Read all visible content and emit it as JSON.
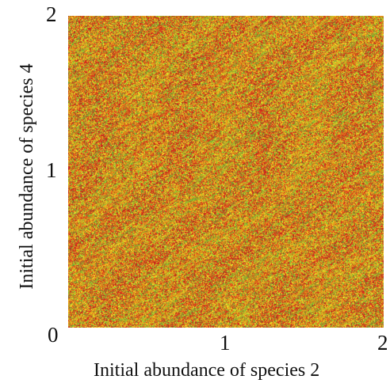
{
  "chart_data": {
    "type": "heatmap",
    "title": "",
    "xlabel": "Initial abundance of species 2",
    "ylabel": "Initial abundance of species 4",
    "xlim": [
      0,
      2
    ],
    "ylim": [
      0,
      2
    ],
    "x_ticks": [
      {
        "value": 1,
        "label": "1"
      },
      {
        "value": 2,
        "label": "2"
      }
    ],
    "y_ticks": [
      {
        "value": 1,
        "label": "1"
      },
      {
        "value": 2,
        "label": "2"
      }
    ],
    "origin_label": "0",
    "grid": false,
    "legend": "none",
    "colors": [
      "#d62b1e",
      "#e9a31b",
      "#e6df2a",
      "#6bbf3a",
      "#c37a2a"
    ]
  }
}
